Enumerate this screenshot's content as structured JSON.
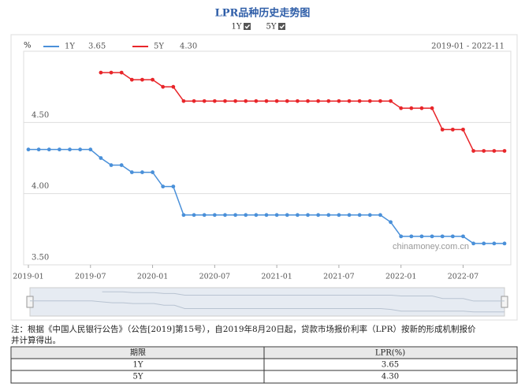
{
  "chart_data": {
    "type": "line",
    "title": "LPR品种历史走势图",
    "y_unit": "%",
    "range": "2019-01 - 2022-11",
    "watermark": "chinamoney.com.cn",
    "categories": [
      "2019-01",
      null,
      null,
      null,
      null,
      null,
      "2019-07",
      null,
      null,
      null,
      null,
      null,
      "2020-01",
      null,
      null,
      null,
      null,
      null,
      "2020-07",
      null,
      null,
      null,
      null,
      null,
      "2021-01",
      null,
      null,
      null,
      null,
      null,
      "2021-07",
      null,
      null,
      null,
      null,
      null,
      "2022-01",
      null,
      null,
      null,
      null,
      null,
      "2022-07",
      null,
      null,
      null,
      null
    ],
    "series": [
      {
        "name": "1Y",
        "color": "#4a90d9",
        "values": [
          4.31,
          4.31,
          4.31,
          4.31,
          4.31,
          4.31,
          4.31,
          4.25,
          4.2,
          4.2,
          4.15,
          4.15,
          4.15,
          4.05,
          4.05,
          3.85,
          3.85,
          3.85,
          3.85,
          3.85,
          3.85,
          3.85,
          3.85,
          3.85,
          3.85,
          3.85,
          3.85,
          3.85,
          3.85,
          3.85,
          3.85,
          3.85,
          3.85,
          3.85,
          3.85,
          3.8,
          3.7,
          3.7,
          3.7,
          3.7,
          3.7,
          3.7,
          3.7,
          3.65,
          3.65,
          3.65,
          3.65
        ]
      },
      {
        "name": "5Y",
        "color": "#e8262a",
        "values": [
          null,
          null,
          null,
          null,
          null,
          null,
          null,
          4.85,
          4.85,
          4.85,
          4.8,
          4.8,
          4.8,
          4.75,
          4.75,
          4.65,
          4.65,
          4.65,
          4.65,
          4.65,
          4.65,
          4.65,
          4.65,
          4.65,
          4.65,
          4.65,
          4.65,
          4.65,
          4.65,
          4.65,
          4.65,
          4.65,
          4.65,
          4.65,
          4.65,
          4.65,
          4.6,
          4.6,
          4.6,
          4.6,
          4.45,
          4.45,
          4.45,
          4.3,
          4.3,
          4.3,
          4.3
        ]
      }
    ],
    "legend_values": [
      "3.65",
      "4.30"
    ],
    "ylim": [
      3.5,
      5.0
    ],
    "yticks": [
      {
        "value": 3.5,
        "label": "3.50"
      },
      {
        "value": 4.0,
        "label": "4.00"
      },
      {
        "value": 4.5,
        "label": "4.50"
      }
    ],
    "grid": true
  },
  "note": [
    "注：根据《中国人民银行公告》（公告[2019]第15号），自2019年8月20日起，贷款市场报价利率（LPR）按新的形成机制报价",
    "并计算得出。"
  ],
  "table": {
    "header": [
      "期限",
      "LPR(%)"
    ],
    "rows": [
      [
        "1Y",
        "3.65"
      ],
      [
        "5Y",
        "4.30"
      ]
    ]
  }
}
